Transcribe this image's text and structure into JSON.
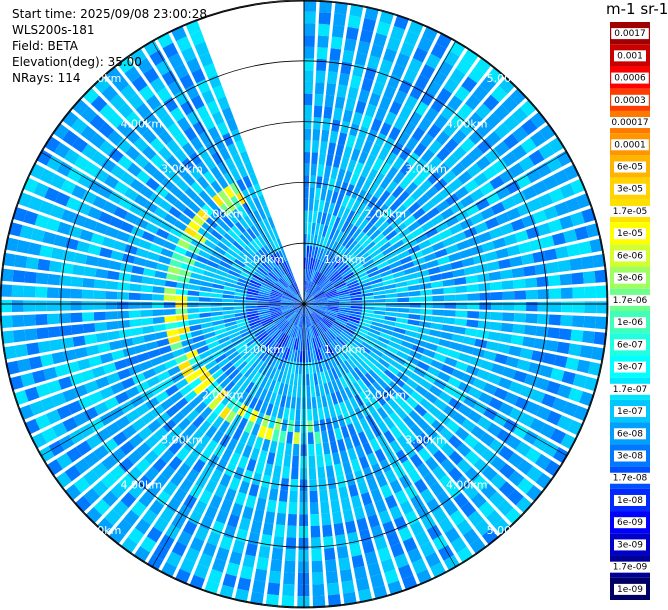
{
  "header": {
    "start_time": "Start time: 2025/09/08 23:00:28",
    "instrument": "WLS200s-181",
    "field": "Field: BETA",
    "elevation": "Elevation(deg): 35.00",
    "nrays": "NRays: 114"
  },
  "colorbar": {
    "title": "m-1 sr-1",
    "ticks": [
      "0.0017",
      "0.001",
      "0.0006",
      "0.0003",
      "0.00017",
      "0.0001",
      "6e-05",
      "3e-05",
      "1.7e-05",
      "1e-05",
      "6e-06",
      "3e-06",
      "1.7e-06",
      "1e-06",
      "6e-07",
      "3e-07",
      "1.7e-07",
      "1e-07",
      "6e-08",
      "3e-08",
      "1.7e-08",
      "1e-08",
      "6e-09",
      "3e-09",
      "1.7e-09",
      "1e-09"
    ],
    "colors": [
      "#a00000",
      "#c80000",
      "#ff0000",
      "#ff3c00",
      "#ff7800",
      "#ff9600",
      "#ffb400",
      "#ffd200",
      "#ffe100",
      "#ffff00",
      "#d2ff2d",
      "#a0ff60",
      "#6eff8c",
      "#40ffb8",
      "#20ffe0",
      "#00ffff",
      "#00e6ff",
      "#00c8ff",
      "#00a0ff",
      "#0078ff",
      "#0050ff",
      "#0028ff",
      "#0000ff",
      "#0000c8",
      "#000096",
      "#000064"
    ]
  },
  "rings": {
    "labels": [
      "1.00km",
      "2.00km",
      "3.00km",
      "4.00km",
      "5.00km"
    ]
  },
  "chart_data": {
    "type": "heatmap",
    "subtype": "polar PPI scan",
    "field": "BETA",
    "units": "m-1 sr-1",
    "elevation_deg": 35.0,
    "n_rays": 114,
    "range_rings_km": [
      1,
      2,
      3,
      4,
      5
    ],
    "max_range_km": 5.0,
    "color_scale": "log",
    "value_range": [
      1e-09,
      0.0017
    ],
    "missing_sector_deg": [
      340,
      360
    ],
    "background_level": "6e-08 to 1.7e-07",
    "features": [
      {
        "feature": "aerosol ring (green/yellow)",
        "range_km": [
          2.0,
          2.4
        ],
        "azimuth_deg": [
          170,
          330
        ],
        "level": "3e-07 to 1.7e-05"
      },
      {
        "feature": "near-field low signal",
        "range_km": [
          0.0,
          1.0
        ],
        "level": "1e-08 to 3e-08"
      }
    ]
  }
}
